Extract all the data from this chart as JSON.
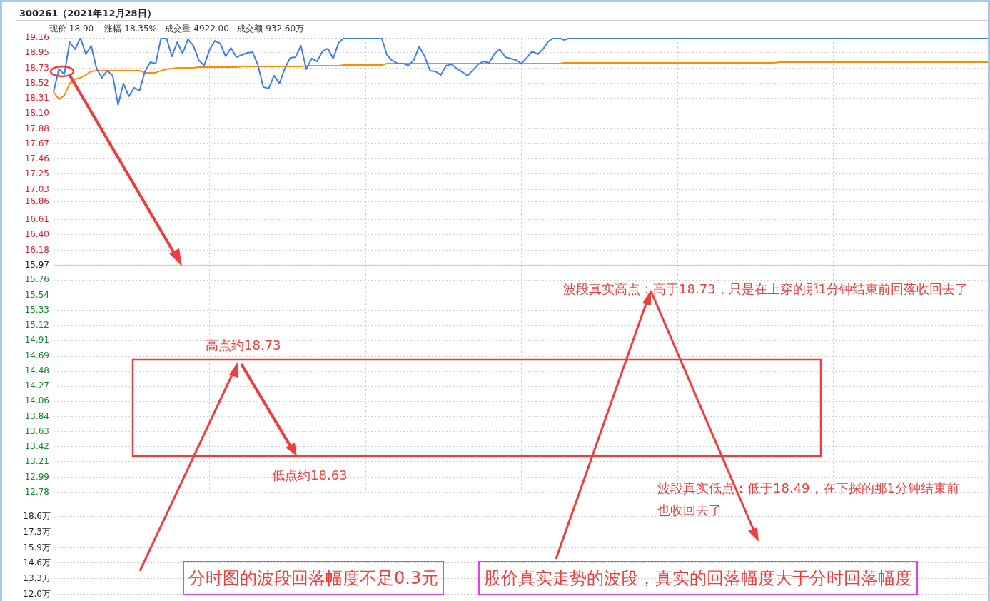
{
  "chart_data": [
    {
      "type": "line",
      "title": "300261（2021年12月28日）",
      "subtitle": "现价 18.90    涨幅 18.35%   成交量 4922.00   成交额 932.60万",
      "categories": [
        null,
        null,
        null,
        null,
        null,
        null,
        null,
        null,
        null,
        null,
        null,
        null,
        null,
        null,
        null,
        null,
        null,
        null,
        null,
        null,
        null,
        null,
        null,
        null,
        null,
        null,
        null,
        null,
        null,
        null,
        null,
        null,
        null,
        null,
        null,
        null,
        null,
        null,
        null,
        null,
        null,
        null,
        null,
        null,
        null,
        null,
        null,
        null,
        null,
        null,
        null,
        null,
        null,
        null,
        null,
        null,
        null,
        null,
        null,
        null,
        null,
        null,
        null,
        null,
        null,
        null,
        null,
        null,
        null,
        null,
        null,
        null,
        null,
        null,
        null,
        null,
        null,
        null,
        null,
        null,
        null,
        null,
        null,
        null,
        null,
        null,
        null,
        null,
        null,
        null,
        null,
        null,
        null,
        null,
        null,
        null,
        null,
        null,
        null,
        null,
        null,
        null,
        null,
        null,
        null,
        null,
        null,
        null,
        null,
        null,
        null,
        null,
        null,
        null,
        null,
        null,
        null,
        null,
        null,
        null,
        null,
        null,
        null,
        null,
        null,
        null,
        null,
        null,
        null,
        null,
        null,
        null,
        null,
        null,
        null,
        null,
        null,
        null,
        null,
        null,
        null,
        null,
        null,
        null,
        null,
        null,
        null,
        null,
        null,
        null,
        null,
        null,
        null,
        null,
        null,
        null,
        null,
        null,
        null,
        null,
        null,
        null,
        null,
        null,
        null,
        null,
        null,
        null,
        null,
        null,
        null,
        null,
        null,
        null,
        null
      ],
      "series": [
        {
          "color": "#3d7cf2",
          "values": [
            18.4,
            18.72,
            18.65,
            19.1,
            19.0,
            19.16,
            18.93,
            19.05,
            18.73,
            18.6,
            18.7,
            18.63,
            18.22,
            18.52,
            18.34,
            18.46,
            18.42,
            18.69,
            18.82,
            18.8,
            19.16,
            19.16,
            18.9,
            19.1,
            18.94,
            19.14,
            19.05,
            18.85,
            18.77,
            18.99,
            19.12,
            19.08,
            18.9,
            19.02,
            18.89,
            18.92,
            18.95,
            18.96,
            18.78,
            18.47,
            18.45,
            18.63,
            18.52,
            18.73,
            18.88,
            18.89,
            19.05,
            18.72,
            18.87,
            18.83,
            18.97,
            19.01,
            18.87,
            19.09,
            19.16,
            19.16,
            19.16,
            19.16,
            19.16,
            19.16,
            19.16,
            19.16,
            18.92,
            18.84,
            18.8,
            18.8,
            18.77,
            18.85,
            19.04,
            18.9,
            18.7,
            18.69,
            18.64,
            18.77,
            18.79,
            18.73,
            18.68,
            18.63,
            18.71,
            18.79,
            18.83,
            18.81,
            18.94,
            19.0,
            18.89,
            18.87,
            18.85,
            18.8,
            18.88,
            18.97,
            18.93,
            19.0,
            19.11,
            19.16,
            19.16,
            19.13,
            19.16,
            19.16,
            19.16,
            19.16,
            19.16,
            19.16,
            19.16,
            19.16,
            19.16,
            19.16,
            19.16,
            19.16,
            19.16,
            19.16,
            19.16,
            19.16,
            19.16,
            19.16,
            19.16,
            19.16,
            19.16,
            19.16,
            19.16,
            19.16,
            19.16,
            19.16,
            19.16,
            19.16,
            19.16,
            19.16,
            19.16,
            19.16,
            19.16,
            19.16,
            19.16,
            19.16,
            19.16,
            19.16,
            19.16,
            19.16,
            19.16,
            19.16,
            19.16,
            19.16,
            19.16,
            19.16,
            19.16,
            19.16,
            19.16,
            19.16,
            19.16,
            19.16,
            19.16,
            19.16,
            19.16,
            19.16,
            19.16,
            19.16,
            19.16,
            19.16,
            19.16,
            19.16,
            19.16,
            19.16,
            19.16,
            19.16,
            19.16,
            19.16,
            19.16,
            19.16,
            19.16,
            19.16,
            19.16,
            19.16,
            19.16,
            19.16,
            19.16,
            19.16,
            19.16
          ]
        },
        {
          "color": "#ff8c00",
          "values": [
            18.4,
            18.3,
            18.35,
            18.52,
            18.58,
            18.6,
            18.64,
            18.69,
            18.7,
            18.7,
            18.7,
            18.7,
            18.7,
            18.7,
            18.7,
            18.7,
            18.7,
            18.67,
            18.67,
            18.67,
            18.7,
            18.72,
            18.73,
            18.74,
            18.74,
            18.74,
            18.74,
            18.75,
            18.75,
            18.75,
            18.75,
            18.75,
            18.75,
            18.75,
            18.75,
            18.76,
            18.76,
            18.76,
            18.76,
            18.76,
            18.76,
            18.76,
            18.76,
            18.76,
            18.76,
            18.76,
            18.76,
            18.77,
            18.77,
            18.77,
            18.77,
            18.77,
            18.77,
            18.77,
            18.78,
            18.78,
            18.78,
            18.78,
            18.78,
            18.78,
            18.78,
            18.78,
            18.8,
            18.8,
            18.8,
            18.8,
            18.8,
            18.8,
            18.8,
            18.8,
            18.8,
            18.8,
            18.8,
            18.8,
            18.8,
            18.8,
            18.8,
            18.8,
            18.8,
            18.8,
            18.8,
            18.8,
            18.8,
            18.8,
            18.8,
            18.8,
            18.8,
            18.8,
            18.8,
            18.8,
            18.8,
            18.8,
            18.8,
            18.8,
            18.8,
            18.81,
            18.81,
            18.81,
            18.81,
            18.81,
            18.81,
            18.81,
            18.81,
            18.81,
            18.81,
            18.81,
            18.81,
            18.81,
            18.81,
            18.81,
            18.81,
            18.81,
            18.81,
            18.81,
            18.81,
            18.81,
            18.81,
            18.81,
            18.81,
            18.81,
            18.81,
            18.81,
            18.81,
            18.81,
            18.81,
            18.81,
            18.81,
            18.81,
            18.81,
            18.81,
            18.81,
            18.81,
            18.81,
            18.81,
            18.81,
            18.82,
            18.82,
            18.82,
            18.82,
            18.82,
            18.82,
            18.82,
            18.82,
            18.82,
            18.82,
            18.82,
            18.82,
            18.82,
            18.82,
            18.82,
            18.82,
            18.82,
            18.82,
            18.82,
            18.82,
            18.82,
            18.82,
            18.82,
            18.82,
            18.82,
            18.82,
            18.82,
            18.82,
            18.82,
            18.82,
            18.82,
            18.82,
            18.82,
            18.82,
            18.82,
            18.82,
            18.82,
            18.82,
            18.82,
            18.82
          ]
        }
      ],
      "ylim": [
        12.78,
        19.16
      ],
      "yticks": [
        19.16,
        18.95,
        18.73,
        18.52,
        18.31,
        {
          "value": 18.1,
          "label": "18.10"
        },
        17.88,
        17.67,
        17.46,
        17.25,
        17.03,
        16.86,
        16.61,
        {
          "value": 16.4,
          "label": "16.40"
        },
        16.18,
        15.97,
        15.76,
        15.54,
        15.33,
        15.12,
        14.91,
        14.69,
        14.48,
        14.27,
        14.06,
        13.84,
        13.63,
        13.42,
        13.21,
        12.99,
        12.78
      ],
      "ref_lines": [
        {
          "axis": "y",
          "value": 15.97,
          "color": "#c8c8c8"
        }
      ],
      "grid": true,
      "marker": "none",
      "line_style": "solid",
      "tick_labels": "y",
      "annotations": [
        "高点约18.73",
        "低点约18.63",
        "波段真实高点：高于18.73，只是在上穿的那1分钟结束前回落收回去了",
        "波段真实低点：低于18.49，在下探的那1分钟结束前也收回去了",
        "分时图的波段回落幅度不足0.3元",
        "股价真实走势的波段，真实的回落幅度大于分时回落幅度"
      ]
    },
    {
      "type": "other",
      "annotations": [
        "18.6万",
        "17.3万",
        "15.9万",
        "14.6万",
        "13.3万",
        "12.0万"
      ]
    }
  ]
}
